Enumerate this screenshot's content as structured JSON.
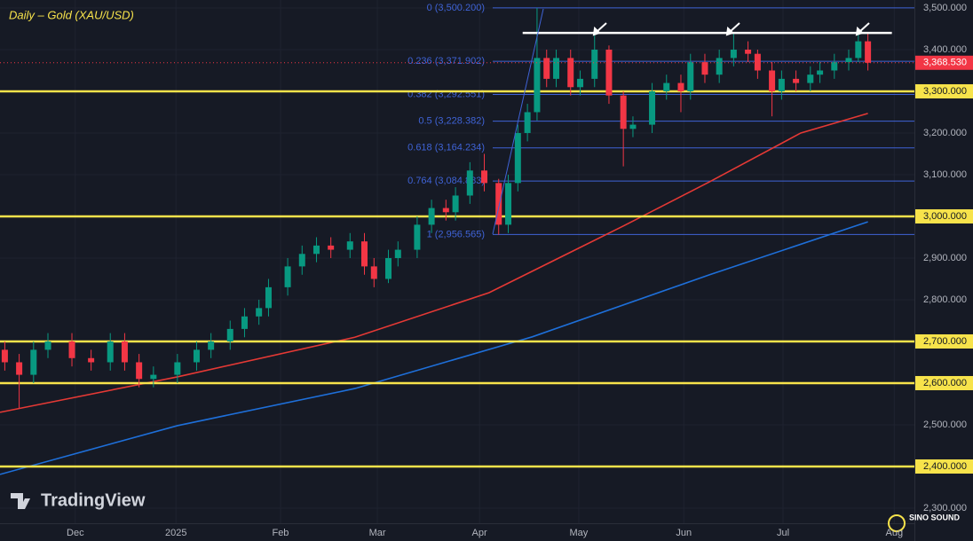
{
  "chart_data": {
    "type": "candlestick",
    "title": "Daily – Gold (XAU/USD)",
    "watermark": "TradingView",
    "logo_text": "SINO SOUND",
    "up_color": "#089981",
    "down_color": "#f23645",
    "x": [
      1,
      4,
      7,
      10,
      15,
      19,
      23,
      26,
      29,
      32,
      37,
      41,
      44,
      48,
      51,
      54,
      56,
      60,
      63,
      66,
      69,
      73,
      76,
      78,
      81,
      83,
      87,
      90,
      93,
      95,
      98,
      101,
      104,
      106,
      108,
      110,
      112,
      114,
      116,
      119,
      121,
      124,
      127,
      130,
      132,
      136,
      139,
      142,
      144,
      147,
      150,
      153,
      156,
      158,
      161,
      163,
      166,
      169,
      171,
      174,
      177,
      179,
      181
    ],
    "open": [
      2680,
      2650,
      2620,
      2680,
      2700,
      2660,
      2650,
      2700,
      2650,
      2610,
      2620,
      2650,
      2680,
      2700,
      2730,
      2760,
      2780,
      2830,
      2880,
      2910,
      2930,
      2920,
      2940,
      2880,
      2850,
      2900,
      2920,
      2980,
      3020,
      3010,
      3050,
      3110,
      3080,
      2980,
      3080,
      3200,
      3250,
      3380,
      3330,
      3380,
      3310,
      3330,
      3400,
      3290,
      3210,
      3220,
      3300,
      3320,
      3300,
      3370,
      3340,
      3380,
      3400,
      3390,
      3350,
      3300,
      3330,
      3320,
      3340,
      3350,
      3370,
      3380,
      3420
    ],
    "high": [
      2700,
      2670,
      2700,
      2720,
      2720,
      2680,
      2720,
      2720,
      2670,
      2640,
      2670,
      2700,
      2720,
      2750,
      2780,
      2800,
      2850,
      2900,
      2930,
      2950,
      2950,
      2960,
      2960,
      2900,
      2920,
      2940,
      3000,
      3040,
      3040,
      3070,
      3130,
      3150,
      3090,
      3100,
      3220,
      3270,
      3500,
      3400,
      3400,
      3400,
      3350,
      3440,
      3410,
      3300,
      3240,
      3320,
      3340,
      3340,
      3390,
      3390,
      3400,
      3440,
      3420,
      3400,
      3370,
      3350,
      3350,
      3360,
      3370,
      3390,
      3400,
      3440,
      3440
    ],
    "low": [
      2630,
      2540,
      2600,
      2660,
      2640,
      2630,
      2630,
      2630,
      2590,
      2590,
      2600,
      2630,
      2660,
      2680,
      2710,
      2740,
      2760,
      2810,
      2860,
      2890,
      2900,
      2900,
      2860,
      2830,
      2840,
      2880,
      2900,
      2960,
      2990,
      2990,
      3030,
      3060,
      2956,
      2960,
      3060,
      3180,
      3230,
      3310,
      3310,
      3290,
      3290,
      3310,
      3270,
      3120,
      3190,
      3200,
      3280,
      3250,
      3280,
      3320,
      3320,
      3360,
      3370,
      3330,
      3240,
      3280,
      3300,
      3300,
      3320,
      3330,
      3350,
      3370,
      3350
    ],
    "close": [
      2650,
      2620,
      2680,
      2700,
      2660,
      2650,
      2700,
      2650,
      2610,
      2620,
      2650,
      2680,
      2700,
      2730,
      2760,
      2780,
      2830,
      2880,
      2910,
      2930,
      2920,
      2940,
      2880,
      2850,
      2900,
      2920,
      2980,
      3020,
      3010,
      3050,
      3110,
      3080,
      2980,
      3080,
      3200,
      3250,
      3380,
      3330,
      3380,
      3310,
      3330,
      3400,
      3290,
      3210,
      3220,
      3300,
      3320,
      3300,
      3370,
      3340,
      3380,
      3400,
      3390,
      3350,
      3300,
      3330,
      3320,
      3340,
      3350,
      3370,
      3380,
      3420,
      3368.53
    ],
    "moving_averages": [
      {
        "color": "#e53935",
        "x": [
          0,
          37,
          74,
          102,
          130,
          148,
          167,
          181
        ],
        "values": [
          2530,
          2615,
          2710,
          2817,
          2977,
          3083,
          3200,
          3247
        ]
      },
      {
        "color": "#1e6fd9",
        "x": [
          0,
          37,
          74,
          111,
          148,
          181
        ],
        "values": [
          2381,
          2498,
          2587,
          2711,
          2860,
          2987
        ]
      }
    ],
    "level_color": "#f7e34b",
    "levels": [
      {
        "value": 3300,
        "label": "3,300.000"
      },
      {
        "value": 3000,
        "label": "3,000.000"
      },
      {
        "value": 2700,
        "label": "2,700.000"
      },
      {
        "value": 2600,
        "label": "2,600.000"
      },
      {
        "value": 2400,
        "label": "2,400.000"
      }
    ],
    "fib_color": "#3f63d6",
    "fib_levels": [
      {
        "value": 3500.2,
        "label": "0 (3,500.200)"
      },
      {
        "value": 3371.902,
        "label": "0.236 (3,371.902)"
      },
      {
        "value": 3292.551,
        "label": "0.382 (3,292.551)"
      },
      {
        "value": 3228.382,
        "label": "0.5 (3,228.382)"
      },
      {
        "value": 3164.234,
        "label": "0.618 (3,164.234)"
      },
      {
        "value": 3084.883,
        "label": "0.764 (3,084.883)"
      },
      {
        "value": 2956.565,
        "label": "1 (2,956.565)"
      }
    ],
    "resistance": {
      "value": 3440,
      "x": [
        109,
        186
      ]
    },
    "last_price": {
      "value": 3368.53,
      "label": "3,368.530"
    },
    "xlim": [
      0,
      190.7
    ],
    "xticks": [
      {
        "value": 15.7,
        "label": "Dec"
      },
      {
        "value": 36.7,
        "label": "2025"
      },
      {
        "value": 58.5,
        "label": "Feb"
      },
      {
        "value": 78.7,
        "label": "Mar"
      },
      {
        "value": 100,
        "label": "Apr"
      },
      {
        "value": 120.7,
        "label": "May"
      },
      {
        "value": 142.6,
        "label": "Jun"
      },
      {
        "value": 163.3,
        "label": "Jul"
      },
      {
        "value": 186.5,
        "label": "Aug"
      }
    ],
    "ylim": [
      2263.8,
      3519.1
    ],
    "yticks": [
      {
        "value": 2300,
        "label": "2,300.000"
      },
      {
        "value": 2400,
        "label": "2,400.000"
      },
      {
        "value": 2500,
        "label": "2,500.000"
      },
      {
        "value": 2600,
        "label": "2,600.000"
      },
      {
        "value": 2700,
        "label": "2,700.000"
      },
      {
        "value": 2800,
        "label": "2,800.000"
      },
      {
        "value": 2900,
        "label": "2,900.000"
      },
      {
        "value": 3000,
        "label": "3,000.000"
      },
      {
        "value": 3100,
        "label": "3,100.000"
      },
      {
        "value": 3200,
        "label": "3,200.000"
      },
      {
        "value": 3300,
        "label": "3,300.000"
      },
      {
        "value": 3400,
        "label": "3,400.000"
      },
      {
        "value": 3500,
        "label": "3,500.000"
      }
    ]
  }
}
